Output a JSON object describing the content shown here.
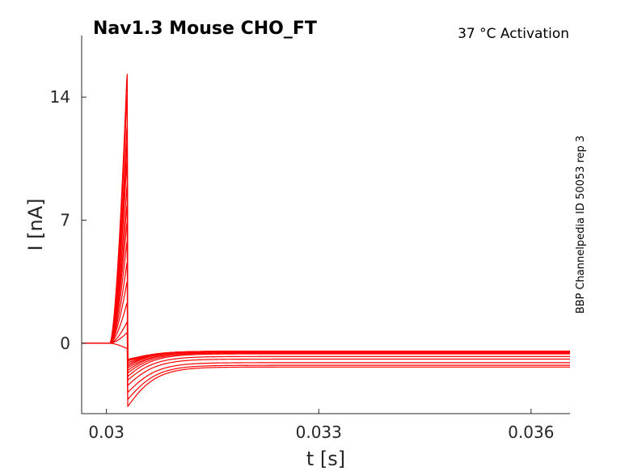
{
  "chart_data": {
    "type": "line",
    "title": "Nav1.3  Mouse  CHO_FT",
    "subtitle": "37 °C  Activation",
    "side_note": "BBP Channelpedia ID 50053 rep 3",
    "xlabel": "t [s]",
    "ylabel": "I [nA]",
    "xlim": [
      0.02965,
      0.03655
    ],
    "ylim": [
      -4,
      17.5
    ],
    "x_ticks": [
      0.03,
      0.033,
      0.036
    ],
    "x_tick_labels": [
      "0.03",
      "0.033",
      "0.036"
    ],
    "y_ticks": [
      0,
      7,
      14
    ],
    "y_tick_labels": [
      "0",
      "7",
      "14"
    ],
    "grid": false,
    "line_color": "#ff0000",
    "pulse": {
      "onset": 0.03005,
      "rise_time": 0.00013,
      "peak_time": 0.03029,
      "offset": 0.0303
    },
    "series": [
      {
        "peak": 15.3,
        "tail": -0.9,
        "steady": -0.45
      },
      {
        "peak": 14.1,
        "tail": -0.95,
        "steady": -0.45
      },
      {
        "peak": 12.4,
        "tail": -1.0,
        "steady": -0.45
      },
      {
        "peak": 11.4,
        "tail": -1.1,
        "steady": -0.45
      },
      {
        "peak": 10.4,
        "tail": -1.2,
        "steady": -0.45
      },
      {
        "peak": 9.0,
        "tail": -1.3,
        "steady": -0.45
      },
      {
        "peak": 7.9,
        "tail": -1.4,
        "steady": -0.5
      },
      {
        "peak": 6.9,
        "tail": -1.55,
        "steady": -0.5
      },
      {
        "peak": 5.8,
        "tail": -1.7,
        "steady": -0.55
      },
      {
        "peak": 4.6,
        "tail": -1.9,
        "steady": -0.6
      },
      {
        "peak": 3.5,
        "tail": -2.1,
        "steady": -0.75
      },
      {
        "peak": 2.3,
        "tail": -2.4,
        "steady": -0.9
      },
      {
        "peak": 1.2,
        "tail": -2.8,
        "steady": -1.1
      },
      {
        "peak": 0.6,
        "tail": -3.2,
        "steady": -1.25
      },
      {
        "peak": -0.3,
        "tail": -3.6,
        "steady": -1.35
      }
    ]
  }
}
